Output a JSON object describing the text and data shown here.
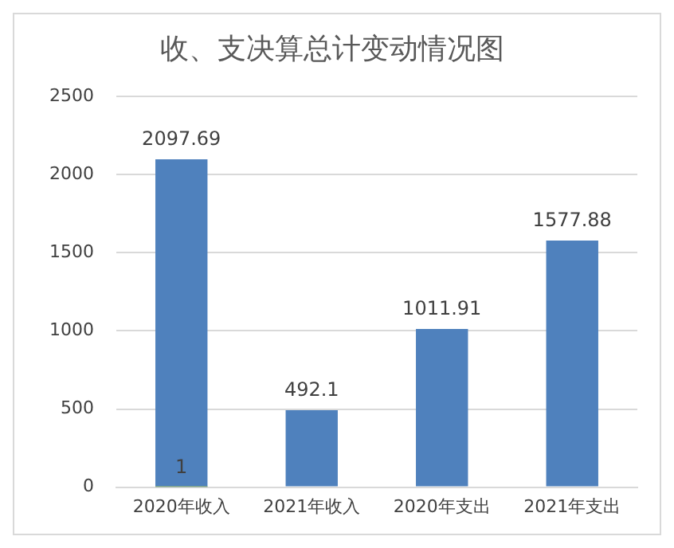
{
  "chart_data": {
    "type": "bar",
    "title": "收、支决算总计变动情况图",
    "categories": [
      "2020年收入",
      "2021年收入",
      "2020年支出",
      "2021年支出"
    ],
    "stacked": true,
    "series": [
      {
        "color": "#9bbb59",
        "values": [
          1,
          null,
          null,
          null
        ]
      },
      {
        "color": "#4f81bd",
        "values": [
          2097.69,
          492.1,
          1011.91,
          1577.88
        ]
      }
    ],
    "ylim": [
      0,
      2500
    ],
    "yticks": [
      0,
      500,
      1000,
      1500,
      2000,
      2500
    ],
    "grid": "y",
    "legend": false,
    "data_labels": true
  }
}
